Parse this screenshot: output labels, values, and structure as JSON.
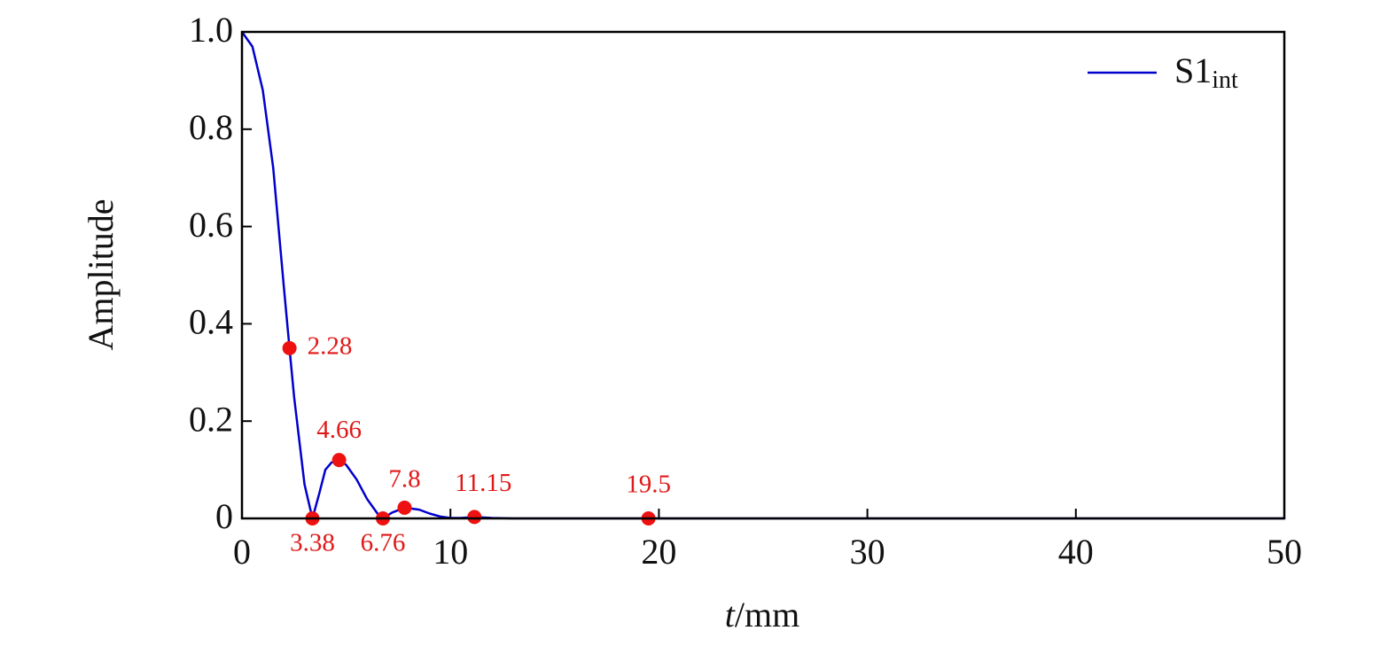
{
  "chart_data": {
    "type": "line",
    "ylabel": "Amplitude",
    "xlabel_symbol": "t",
    "xlabel_unit": "/mm",
    "xlim": [
      0,
      50
    ],
    "ylim": [
      0,
      1
    ],
    "xticks": [
      0,
      10,
      20,
      30,
      40,
      50
    ],
    "yticks": [
      0,
      0.2,
      0.4,
      0.6,
      0.8,
      {
        "value": 1,
        "label": "1.0"
      }
    ],
    "legend": "upper right",
    "series": [
      {
        "name": "S1",
        "name_subscript": "int",
        "color": "#0000cc",
        "style": "line",
        "x": [
          0,
          0.5,
          1,
          1.5,
          2,
          2.28,
          2.5,
          3,
          3.38,
          3.7,
          4,
          4.3,
          4.66,
          5,
          5.5,
          6,
          6.5,
          6.76,
          7.2,
          7.8,
          8.5,
          9,
          9.5,
          10,
          10.5,
          11.15,
          12,
          13,
          15,
          19.5,
          25,
          50
        ],
        "values": [
          1,
          0.97,
          0.88,
          0.72,
          0.48,
          0.35,
          0.25,
          0.07,
          0,
          0.05,
          0.1,
          0.115,
          0.12,
          0.11,
          0.08,
          0.04,
          0.01,
          0,
          0.012,
          0.022,
          0.018,
          0.01,
          0.004,
          0.001,
          0.001,
          0.003,
          0.001,
          0,
          0,
          0,
          0,
          0
        ]
      },
      {
        "color": "#ee1111",
        "style": "markers",
        "x": [
          2.28,
          3.38,
          4.66,
          6.76,
          7.8,
          11.15,
          19.5
        ],
        "values": [
          0.35,
          0,
          0.12,
          0,
          0.022,
          0.003,
          0
        ]
      }
    ]
  }
}
